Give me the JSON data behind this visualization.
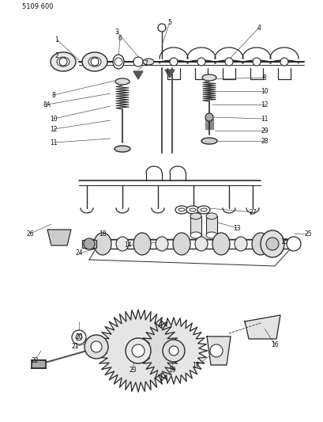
{
  "title": "5109 600",
  "bg_color": "#ffffff",
  "lc": "#2a2a2a",
  "fig_width": 4.1,
  "fig_height": 5.33,
  "dpi": 100
}
